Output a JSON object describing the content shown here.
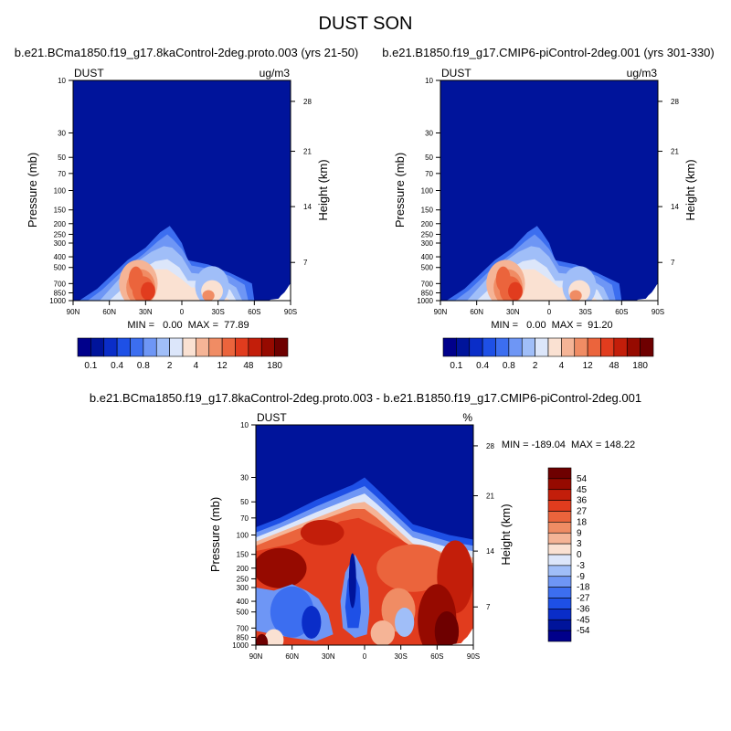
{
  "page_title": "DUST SON",
  "panels": [
    {
      "title": "b.e21.BCma1850.f19_g17.8kaControl-2deg.proto.003 (yrs 21-50)",
      "left_label": "DUST",
      "right_label": "ug/m3",
      "stats": "MIN =   0.00  MAX =  77.89"
    },
    {
      "title": "b.e21.B1850.f19_g17.CMIP6-piControl-2deg.001 (yrs 301-330)",
      "left_label": "DUST",
      "right_label": "ug/m3",
      "stats": "MIN =   0.00  MAX =  91.20"
    },
    {
      "title": "b.e21.BCma1850.f19_g17.8kaControl-2deg.proto.003 - b.e21.B1850.f19_g17.CMIP6-piControl-2deg.001",
      "left_label": "DUST",
      "right_label": "%",
      "stats": "MIN = -189.04  MAX = 148.22"
    }
  ],
  "chart_data": [
    {
      "type": "heatmap",
      "title": "b.e21.BCma1850.f19_g17.8kaControl-2deg.proto.003 (yrs 21-50)",
      "variable": "DUST",
      "units": "ug/m3",
      "xlabel": "",
      "ylabel": "Pressure (mb)",
      "y2label": "Height (km)",
      "x_ticks": [
        "90N",
        "60N",
        "30N",
        "0",
        "30S",
        "60S",
        "90S"
      ],
      "y_ticks": [
        10,
        30,
        50,
        70,
        100,
        150,
        200,
        250,
        300,
        400,
        500,
        700,
        850,
        1000
      ],
      "y2_ticks": [
        28,
        21,
        14,
        7
      ],
      "y_scale": "log",
      "ylim": [
        1000,
        10
      ],
      "min": 0.0,
      "max": 77.89,
      "colorbar_labels": [
        "0.1",
        "0.4",
        "0.8",
        "2",
        "4",
        "12",
        "48",
        "180"
      ]
    },
    {
      "type": "heatmap",
      "title": "b.e21.B1850.f19_g17.CMIP6-piControl-2deg.001 (yrs 301-330)",
      "variable": "DUST",
      "units": "ug/m3",
      "xlabel": "",
      "ylabel": "Pressure (mb)",
      "y2label": "Height (km)",
      "x_ticks": [
        "90N",
        "60N",
        "30N",
        "0",
        "30S",
        "60S",
        "90S"
      ],
      "y_ticks": [
        10,
        30,
        50,
        70,
        100,
        150,
        200,
        250,
        300,
        400,
        500,
        700,
        850,
        1000
      ],
      "y2_ticks": [
        28,
        21,
        14,
        7
      ],
      "y_scale": "log",
      "ylim": [
        1000,
        10
      ],
      "min": 0.0,
      "max": 91.2,
      "colorbar_labels": [
        "0.1",
        "0.4",
        "0.8",
        "2",
        "4",
        "12",
        "48",
        "180"
      ]
    },
    {
      "type": "heatmap",
      "title": "b.e21.BCma1850.f19_g17.8kaControl-2deg.proto.003 - b.e21.B1850.f19_g17.CMIP6-piControl-2deg.001",
      "variable": "DUST",
      "units": "%",
      "xlabel": "",
      "ylabel": "Pressure (mb)",
      "y2label": "Height (km)",
      "x_ticks": [
        "90N",
        "60N",
        "30N",
        "0",
        "30S",
        "60S",
        "90S"
      ],
      "y_ticks": [
        10,
        30,
        50,
        70,
        100,
        150,
        200,
        250,
        300,
        400,
        500,
        700,
        850,
        1000
      ],
      "y2_ticks": [
        28,
        21,
        14,
        7
      ],
      "y_scale": "log",
      "ylim": [
        1000,
        10
      ],
      "min": -189.04,
      "max": 148.22,
      "colorbar_labels": [
        "54",
        "45",
        "36",
        "27",
        "18",
        "9",
        "3",
        "0",
        "-3",
        "-9",
        "-18",
        "-27",
        "-36",
        "-45",
        "-54"
      ]
    }
  ],
  "colors": {
    "background_field": "#00149b",
    "abs_colorbar": [
      "#00008b",
      "#00149b",
      "#0a2dc8",
      "#1e50e6",
      "#3c6ef0",
      "#6e96f5",
      "#a0bef8",
      "#dce6fa",
      "#fae1d2",
      "#f5b496",
      "#f08c64",
      "#eb643c",
      "#e13c1e",
      "#c31e0a",
      "#960a00",
      "#6e0000"
    ],
    "diff_colorbar": [
      "#6e0000",
      "#960a00",
      "#c31e0a",
      "#e13c1e",
      "#eb643c",
      "#f08c64",
      "#f5b496",
      "#fae1d2",
      "#dce6fa",
      "#a0bef8",
      "#6e96f5",
      "#3c6ef0",
      "#1e50e6",
      "#0a2dc8",
      "#00149b",
      "#00008b"
    ]
  }
}
